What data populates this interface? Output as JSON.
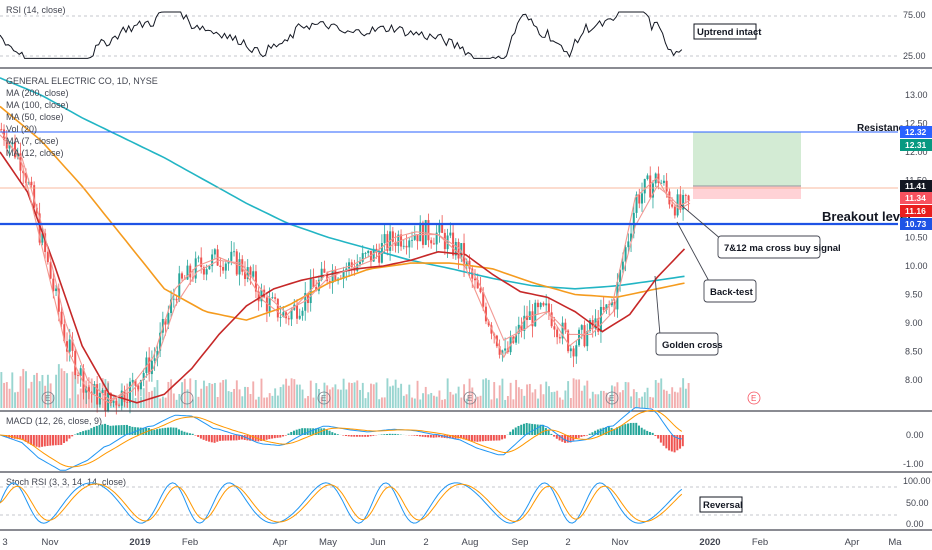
{
  "chart_data": {
    "type": "line",
    "symbol": "GENERAL ELECTRIC CO, 1D, NYSE",
    "x_ticks": [
      "3",
      "Nov",
      "2019",
      "Feb",
      "Apr",
      "May",
      "Jun",
      "2",
      "Aug",
      "Sep",
      "2",
      "Nov",
      "2020",
      "Feb",
      "Apr",
      "Ma"
    ],
    "price_axis": {
      "ticks": [
        "13.00",
        "12.50",
        "12.00",
        "11.50",
        "11.00",
        "10.50",
        "10.00",
        "9.50",
        "9.00",
        "8.50",
        "8.00"
      ],
      "range": [
        7.5,
        13.4
      ]
    },
    "legend": [
      "MA (200, close)",
      "MA (100, close)",
      "MA (50, close)",
      "Vol (20)",
      "MA (7, close)",
      "MA (12, close)"
    ],
    "price_tags": [
      {
        "value": "12.32",
        "color": "#2962ff"
      },
      {
        "value": "12.31",
        "color": "#089981"
      },
      {
        "value": "11.41",
        "color": "#131722"
      },
      {
        "value": "11.34",
        "color": "#f7525f"
      },
      {
        "value": "11.16",
        "color": "#e91e1e"
      },
      {
        "value": "10.73",
        "color": "#1e53e5"
      }
    ],
    "levels": {
      "resistance": {
        "label": "Resistance",
        "value": 12.32
      },
      "breakout": {
        "label": "Breakout level",
        "value": 10.73
      },
      "reference": 11.41
    },
    "series": [
      {
        "name": "MA (200, close)",
        "color": "#22b5c4",
        "x": [
          0,
          15,
          30,
          45,
          60,
          75,
          90,
          105,
          120,
          135,
          150,
          165,
          180,
          195,
          210,
          225,
          240,
          250
        ],
        "values": [
          13.3,
          13.0,
          12.6,
          12.25,
          11.9,
          11.5,
          11.1,
          10.75,
          10.5,
          10.3,
          10.1,
          9.95,
          9.78,
          9.65,
          9.6,
          9.65,
          9.75,
          9.82
        ]
      },
      {
        "name": "MA (100, close)",
        "color": "#f59b1e",
        "x": [
          0,
          15,
          30,
          45,
          60,
          75,
          90,
          105,
          120,
          135,
          150,
          165,
          180,
          195,
          210,
          225,
          240,
          250
        ],
        "values": [
          12.8,
          12.2,
          11.4,
          10.5,
          9.6,
          9.2,
          9.05,
          9.3,
          9.7,
          9.95,
          10.05,
          10.05,
          9.95,
          9.7,
          9.5,
          9.45,
          9.6,
          9.7
        ]
      },
      {
        "name": "MA (50, close)",
        "color": "#c62828",
        "x": [
          0,
          10,
          20,
          30,
          40,
          50,
          60,
          70,
          80,
          90,
          100,
          110,
          120,
          130,
          140,
          150,
          160,
          170,
          180,
          190,
          200,
          210,
          220,
          230,
          240,
          250
        ],
        "values": [
          12.0,
          11.3,
          10.0,
          8.6,
          7.75,
          7.6,
          7.75,
          8.2,
          8.8,
          9.3,
          9.6,
          9.75,
          9.85,
          9.95,
          10.0,
          10.1,
          10.25,
          10.2,
          9.85,
          9.55,
          9.45,
          9.2,
          8.85,
          9.15,
          9.8,
          10.3
        ]
      },
      {
        "name": "MA (7, close)",
        "color": "#f4978e",
        "x": [
          0,
          8,
          16,
          24,
          32,
          40,
          48,
          56,
          64,
          72,
          80,
          88,
          96,
          104,
          112,
          120,
          128,
          136,
          144,
          152,
          160,
          168,
          176,
          184,
          192,
          200,
          208,
          216,
          224,
          232,
          240,
          244,
          248,
          252
        ],
        "values": [
          12.4,
          11.8,
          10.2,
          8.6,
          7.8,
          7.6,
          7.9,
          8.4,
          9.6,
          10.0,
          10.15,
          10.0,
          9.4,
          9.1,
          9.5,
          9.9,
          10.0,
          10.2,
          10.5,
          10.6,
          10.55,
          10.2,
          9.3,
          8.4,
          9.1,
          9.2,
          8.6,
          8.9,
          9.4,
          11.2,
          11.55,
          11.2,
          11.0,
          11.1
        ]
      },
      {
        "name": "MA (12, close)",
        "color": "#f29a96",
        "x": [
          0,
          8,
          16,
          24,
          32,
          40,
          48,
          56,
          64,
          72,
          80,
          88,
          96,
          104,
          112,
          120,
          128,
          136,
          144,
          152,
          160,
          168,
          176,
          184,
          192,
          200,
          208,
          216,
          224,
          232,
          240,
          244,
          248,
          252
        ],
        "values": [
          12.3,
          11.9,
          10.6,
          9.0,
          8.0,
          7.65,
          7.8,
          8.2,
          9.3,
          9.9,
          10.1,
          10.05,
          9.55,
          9.2,
          9.4,
          9.8,
          9.95,
          10.1,
          10.4,
          10.55,
          10.55,
          10.3,
          9.6,
          8.7,
          8.9,
          9.2,
          8.8,
          8.8,
          9.2,
          10.7,
          11.4,
          11.25,
          11.05,
          11.15
        ]
      }
    ],
    "panels": {
      "rsi": {
        "legend": "RSI (14, close)",
        "ticks": [
          "75.00",
          "25.00"
        ],
        "note": "Uptrend intact"
      },
      "macd": {
        "legend": "MACD (12, 26, close, 9)",
        "ticks": [
          "0.00",
          "-1.00"
        ]
      },
      "stoch": {
        "legend": "Stoch RSI (3, 3, 14, 14, close)",
        "ticks": [
          "100.00",
          "50.00",
          "0.00"
        ],
        "note": "Reversal"
      }
    },
    "annotations": [
      {
        "text": "7&12 ma cross buy signal"
      },
      {
        "text": "Back-test"
      },
      {
        "text": "Golden cross"
      }
    ]
  }
}
